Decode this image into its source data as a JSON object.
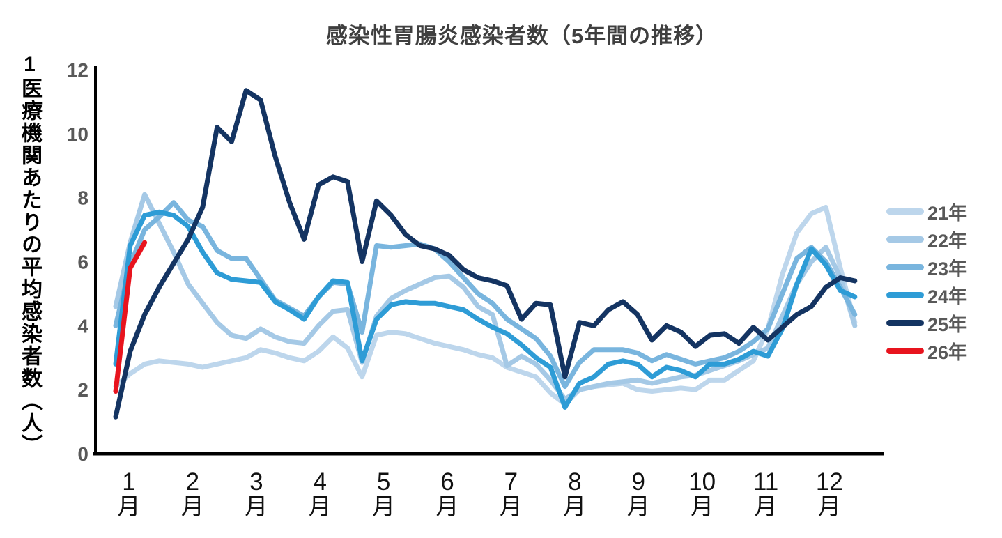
{
  "title": "感染性胃腸炎感染者数（5年間の推移）",
  "y_axis_label_first_char": "1",
  "y_axis_label_rest": "医療機関あたりの平均感染者数（人）",
  "month_suffix": "月",
  "chart_data": {
    "type": "line",
    "title": "感染性胃腸炎感染者数（5年間の推移）",
    "xlabel": "",
    "ylabel": "1医療機関あたりの平均感染者数（人）",
    "ylim": [
      0,
      12
    ],
    "y_ticks": [
      0,
      2,
      4,
      6,
      8,
      10,
      12
    ],
    "grid": false,
    "legend_position": "right",
    "categories": [
      "1月",
      "2月",
      "3月",
      "4月",
      "5月",
      "6月",
      "7月",
      "8月",
      "9月",
      "10月",
      "11月",
      "12月"
    ],
    "x_unit": "week",
    "weeks_per_year": 52,
    "series": [
      {
        "name": "21年",
        "color": "#bdd6ec",
        "values": [
          2.1,
          2.5,
          2.8,
          2.9,
          2.85,
          2.8,
          2.7,
          2.8,
          2.9,
          3.0,
          3.25,
          3.15,
          3.0,
          2.9,
          3.2,
          3.65,
          3.3,
          2.4,
          3.7,
          3.8,
          3.75,
          3.6,
          3.45,
          3.35,
          3.25,
          3.1,
          3.0,
          2.7,
          2.55,
          2.4,
          1.9,
          1.55,
          2.0,
          2.1,
          2.15,
          2.2,
          2.0,
          1.95,
          2.0,
          2.05,
          2.0,
          2.3,
          2.3,
          2.6,
          2.9,
          3.9,
          5.6,
          6.9,
          7.5,
          7.7,
          5.8,
          4.1
        ]
      },
      {
        "name": "22年",
        "color": "#a5c9e6",
        "values": [
          4.6,
          6.6,
          8.1,
          7.2,
          6.3,
          5.3,
          4.7,
          4.1,
          3.7,
          3.6,
          3.9,
          3.65,
          3.5,
          3.45,
          4.0,
          4.45,
          4.5,
          2.85,
          4.3,
          4.85,
          5.1,
          5.3,
          5.5,
          5.55,
          5.2,
          4.6,
          4.35,
          2.75,
          3.05,
          2.8,
          2.3,
          1.7,
          2.0,
          2.1,
          2.2,
          2.25,
          2.3,
          2.2,
          2.3,
          2.4,
          2.45,
          2.6,
          2.75,
          2.9,
          3.1,
          3.3,
          4.3,
          5.3,
          6.0,
          6.45,
          5.5,
          4.0
        ]
      },
      {
        "name": "23年",
        "color": "#79b5de",
        "values": [
          4.0,
          5.9,
          7.0,
          7.4,
          7.85,
          7.3,
          7.1,
          6.35,
          6.1,
          6.1,
          5.45,
          4.8,
          4.55,
          4.3,
          4.9,
          5.35,
          5.3,
          3.8,
          6.5,
          6.45,
          6.5,
          6.55,
          6.4,
          6.0,
          5.5,
          5.0,
          4.7,
          4.2,
          3.9,
          3.6,
          3.05,
          2.1,
          2.85,
          3.25,
          3.25,
          3.25,
          3.15,
          2.9,
          3.1,
          2.95,
          2.8,
          2.9,
          3.0,
          3.2,
          3.5,
          3.9,
          5.0,
          6.1,
          6.45,
          6.0,
          5.2,
          4.35
        ]
      },
      {
        "name": "24年",
        "color": "#2e9cd6",
        "values": [
          2.8,
          6.5,
          7.45,
          7.55,
          7.45,
          7.1,
          6.3,
          5.65,
          5.45,
          5.4,
          5.35,
          4.75,
          4.5,
          4.2,
          4.9,
          5.4,
          5.35,
          2.9,
          4.2,
          4.65,
          4.75,
          4.7,
          4.7,
          4.6,
          4.5,
          4.2,
          3.95,
          3.75,
          3.4,
          3.0,
          2.7,
          1.45,
          2.2,
          2.4,
          2.8,
          2.9,
          2.8,
          2.4,
          2.7,
          2.6,
          2.4,
          2.8,
          2.8,
          2.95,
          3.2,
          3.05,
          3.9,
          5.3,
          6.4,
          5.9,
          5.1,
          4.9
        ]
      },
      {
        "name": "25年",
        "color": "#143462",
        "values": [
          1.15,
          3.2,
          4.35,
          5.2,
          5.95,
          6.7,
          7.7,
          10.2,
          9.75,
          11.35,
          11.05,
          9.3,
          7.85,
          6.7,
          8.4,
          8.65,
          8.5,
          6.0,
          7.9,
          7.45,
          6.85,
          6.5,
          6.4,
          6.2,
          5.75,
          5.5,
          5.4,
          5.25,
          4.2,
          4.7,
          4.65,
          2.4,
          4.1,
          4.0,
          4.5,
          4.75,
          4.35,
          3.55,
          4.0,
          3.8,
          3.35,
          3.7,
          3.75,
          3.45,
          3.95,
          3.55,
          3.95,
          4.35,
          4.6,
          5.2,
          5.5,
          5.4
        ]
      },
      {
        "name": "26年",
        "color": "#e8141e",
        "values": [
          1.95,
          5.8,
          6.6
        ]
      }
    ]
  }
}
